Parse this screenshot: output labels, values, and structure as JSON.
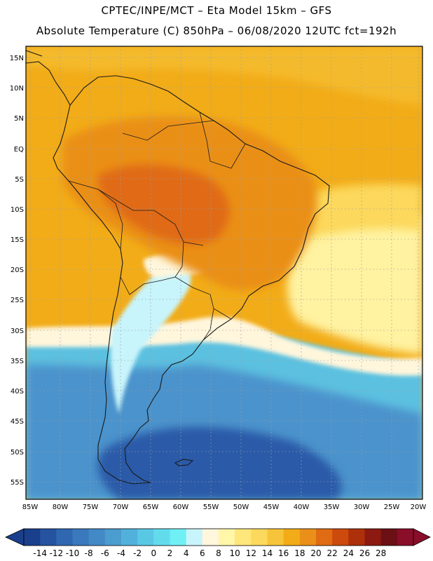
{
  "header": {
    "line1": "CPTEC/INPE/MCT –   Eta Model 15km – GFS",
    "line2": "Absolute Temperature (C) 850hPa – 06/08/2020 12UTC fct=192h"
  },
  "axes": {
    "lat_labels": [
      "15N",
      "10N",
      "5N",
      "EQ",
      "5S",
      "10S",
      "15S",
      "20S",
      "25S",
      "30S",
      "35S",
      "40S",
      "45S",
      "50S",
      "55S"
    ],
    "lon_labels": [
      "85W",
      "80W",
      "75W",
      "70W",
      "65W",
      "60W",
      "55W",
      "50W",
      "45W",
      "40W",
      "35W",
      "30W",
      "25W",
      "20W"
    ]
  },
  "colorbar": {
    "labels": [
      "-14",
      "-12",
      "-10",
      "-8",
      "-6",
      "-4",
      "-2",
      "0",
      "2",
      "4",
      "6",
      "8",
      "10",
      "12",
      "14",
      "16",
      "18",
      "20",
      "22",
      "24",
      "26",
      "28"
    ],
    "colors": [
      "#1a3f8c",
      "#2553a0",
      "#2f67b0",
      "#3a79bd",
      "#4389c6",
      "#4b9ccf",
      "#52b1dc",
      "#59c8e5",
      "#62dced",
      "#6ff0f5",
      "#c8f4fb",
      "#fff6dc",
      "#fff6a8",
      "#ffe67a",
      "#fcd85c",
      "#f6c43a",
      "#f2ac18",
      "#ea8f19",
      "#e06b12",
      "#cc4a0c",
      "#ad300a",
      "#8c1a10",
      "#6b1014",
      "#8a0d2a"
    ]
  },
  "palette": {
    "sea_cold_deep": "#2b5aa8",
    "sea_cold": "#4c93cc",
    "sea_cool": "#5cc1e0",
    "cyan_light": "#c8f4fb",
    "cream": "#fff6dc",
    "yellow_light": "#fff2a0",
    "yellow": "#fcd85c",
    "orange_light": "#f6c43a",
    "orange": "#f2ac18",
    "orange_dark": "#ea8f19",
    "brown_orange": "#e06b12"
  }
}
